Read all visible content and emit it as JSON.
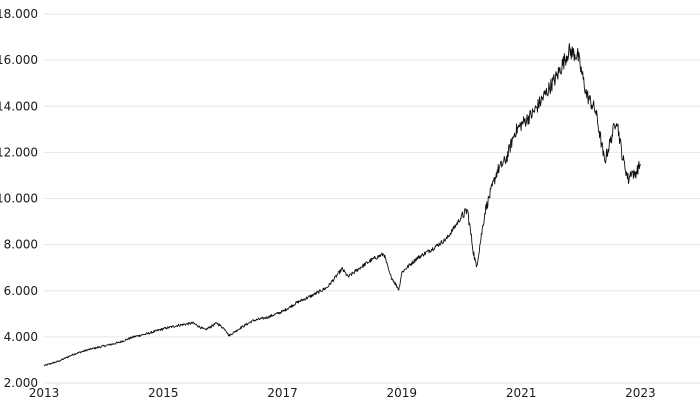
{
  "chart_data": {
    "type": "line",
    "title": "",
    "xlabel": "",
    "ylabel": "",
    "xlim": [
      2013,
      2024
    ],
    "ylim": [
      2000,
      18000
    ],
    "grid": true,
    "legend": "none",
    "line_color": "#111111",
    "grid_color": "#e6e6e6",
    "x_ticks": [
      {
        "value": 2013,
        "label": "2013"
      },
      {
        "value": 2015,
        "label": "2015"
      },
      {
        "value": 2017,
        "label": "2017"
      },
      {
        "value": 2019,
        "label": "2019"
      },
      {
        "value": 2021,
        "label": "2021"
      },
      {
        "value": 2023,
        "label": "2023"
      }
    ],
    "y_ticks": [
      {
        "value": 2000,
        "label": "2.000"
      },
      {
        "value": 4000,
        "label": "4.000"
      },
      {
        "value": 6000,
        "label": "6.000"
      },
      {
        "value": 8000,
        "label": "8.000"
      },
      {
        "value": 10000,
        "label": "10.000"
      },
      {
        "value": 12000,
        "label": "12.000"
      },
      {
        "value": 14000,
        "label": "14.000"
      },
      {
        "value": 16000,
        "label": "16.000"
      },
      {
        "value": 18000,
        "label": "18.000"
      }
    ],
    "series": [
      {
        "x": [
          2013.0,
          2013.25,
          2013.5,
          2013.75,
          2014.0,
          2014.25,
          2014.5,
          2014.75,
          2015.0,
          2015.25,
          2015.5,
          2015.6,
          2015.7,
          2015.9,
          2016.05,
          2016.1,
          2016.3,
          2016.5,
          2016.75,
          2017.0,
          2017.25,
          2017.5,
          2017.75,
          2018.0,
          2018.1,
          2018.3,
          2018.5,
          2018.7,
          2018.8,
          2018.95,
          2019.0,
          2019.25,
          2019.5,
          2019.75,
          2020.0,
          2020.1,
          2020.2,
          2020.25,
          2020.4,
          2020.6,
          2020.75,
          2020.9,
          2021.0,
          2021.2,
          2021.4,
          2021.6,
          2021.8,
          2021.95,
          2022.1,
          2022.25,
          2022.4,
          2022.5,
          2022.6,
          2022.7,
          2022.8,
          2022.85,
          2022.9,
          2023.0
        ],
        "values": [
          2750,
          2950,
          3250,
          3450,
          3600,
          3750,
          4000,
          4150,
          4350,
          4500,
          4600,
          4450,
          4300,
          4600,
          4300,
          4050,
          4400,
          4700,
          4850,
          5100,
          5500,
          5800,
          6150,
          6950,
          6600,
          7000,
          7350,
          7600,
          6700,
          6050,
          6800,
          7400,
          7800,
          8250,
          9200,
          9500,
          7700,
          7000,
          9500,
          11200,
          11700,
          12900,
          13200,
          13700,
          14500,
          15300,
          16400,
          16200,
          14500,
          13800,
          11600,
          12500,
          13500,
          11800,
          10800,
          11200,
          11000,
          11500
        ]
      }
    ]
  }
}
